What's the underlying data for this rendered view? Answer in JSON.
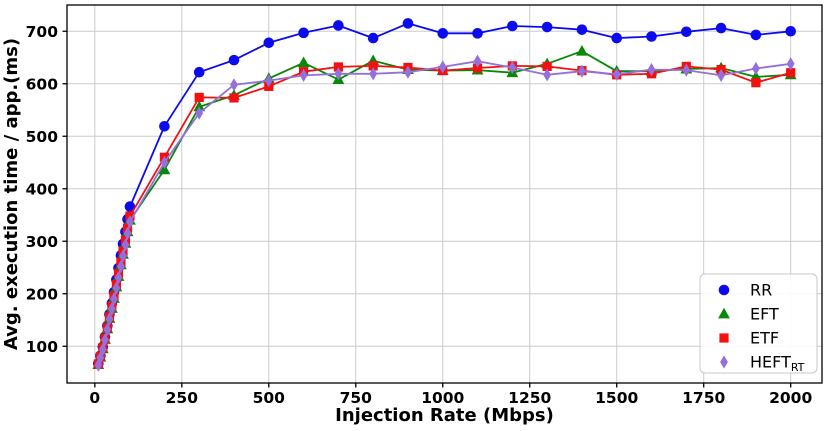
{
  "chart_data": {
    "type": "line",
    "title": "",
    "xlabel": "Injection Rate (Mbps)",
    "ylabel": "Avg. execution time / app.(ms)",
    "xlim": [
      -80,
      2090
    ],
    "ylim": [
      30,
      750
    ],
    "xticks": [
      0,
      250,
      500,
      750,
      1000,
      1250,
      1500,
      1750,
      2000
    ],
    "yticks": [
      100,
      200,
      300,
      400,
      500,
      600,
      700
    ],
    "grid": true,
    "grid_color": "#cccccc",
    "legend_position": "lower right",
    "x": [
      10,
      16,
      23,
      29,
      36,
      42,
      49,
      55,
      62,
      68,
      75,
      81,
      88,
      94,
      101,
      200,
      300,
      400,
      500,
      600,
      700,
      800,
      900,
      1000,
      1100,
      1200,
      1300,
      1400,
      1500,
      1600,
      1700,
      1800,
      1900,
      2000
    ],
    "series": [
      {
        "name": "RR",
        "sub": "",
        "color": "#0b0bee",
        "marker": "circle",
        "values": [
          67,
          82,
          99,
          118,
          139,
          161,
          182,
          203,
          227,
          249,
          273,
          295,
          318,
          342,
          366,
          519,
          622,
          645,
          678,
          697,
          711,
          687,
          715,
          696,
          696,
          710,
          708,
          703,
          687,
          690,
          699,
          706,
          693,
          700
        ]
      },
      {
        "name": "EFT",
        "sub": "",
        "color": "#078807",
        "marker": "triangle",
        "values": [
          65,
          79,
          95,
          113,
          133,
          153,
          172,
          191,
          213,
          233,
          255,
          275,
          296,
          318,
          340,
          436,
          556,
          578,
          610,
          640,
          608,
          644,
          627,
          625,
          626,
          621,
          638,
          662,
          624,
          624,
          628,
          630,
          613,
          617
        ]
      },
      {
        "name": "ETF",
        "sub": "",
        "color": "#f31010",
        "marker": "square",
        "values": [
          66,
          80,
          97,
          115,
          135,
          156,
          176,
          196,
          218,
          238,
          260,
          281,
          302,
          325,
          348,
          460,
          574,
          573,
          595,
          623,
          632,
          634,
          631,
          625,
          630,
          634,
          633,
          625,
          617,
          619,
          633,
          627,
          602,
          621
        ]
      },
      {
        "name": "HEFT",
        "sub": "RT",
        "color": "#9370db",
        "marker": "diamond",
        "values": [
          64,
          78,
          94,
          112,
          132,
          152,
          171,
          190,
          211,
          231,
          252,
          272,
          293,
          315,
          337,
          450,
          544,
          598,
          606,
          616,
          619,
          619,
          622,
          632,
          643,
          631,
          617,
          624,
          618,
          627,
          626,
          616,
          629,
          638
        ]
      }
    ]
  }
}
